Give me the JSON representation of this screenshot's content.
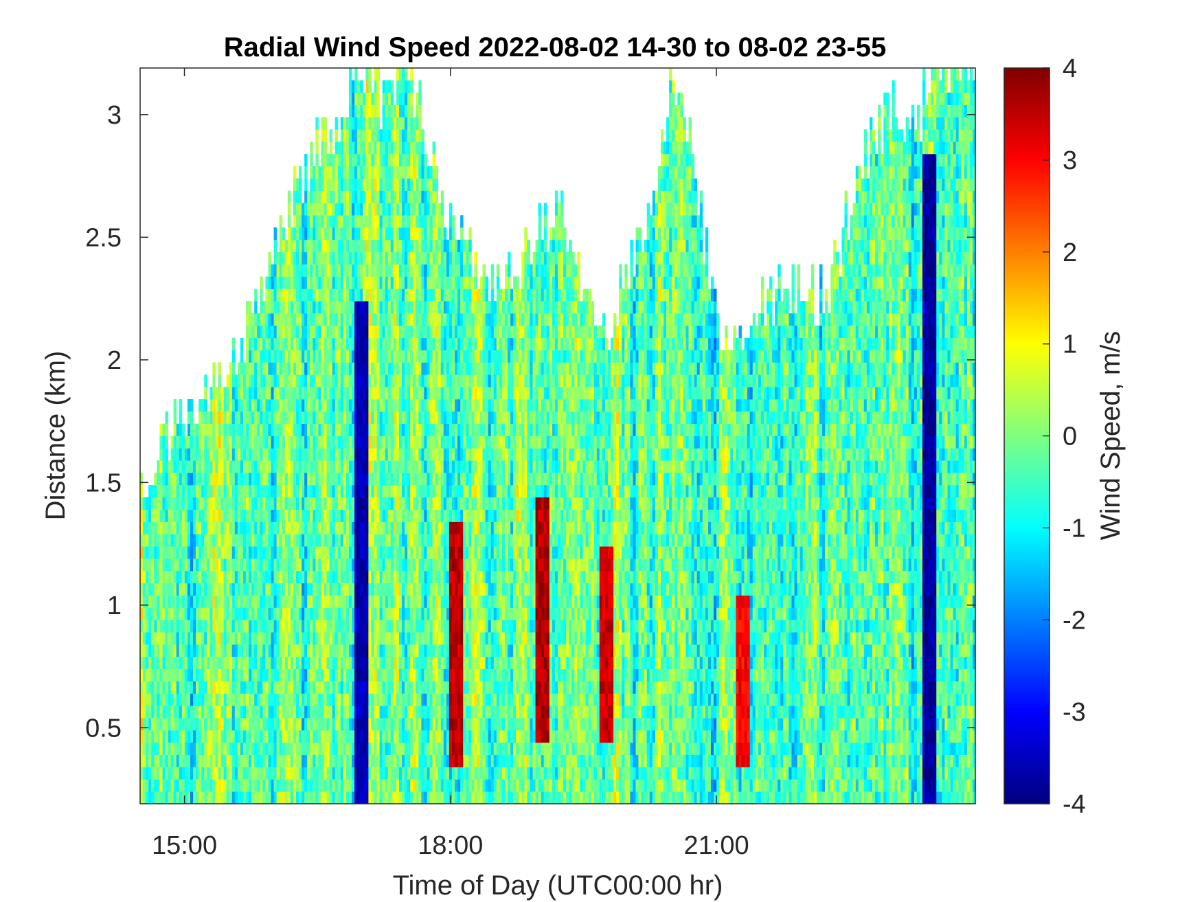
{
  "chart_data": {
    "type": "heatmap",
    "title": "Radial Wind Speed 2022-08-02 14-30 to 08-02 23-55",
    "xlabel": "Time of Day (UTC00:00 hr)",
    "ylabel": "Distance (km)",
    "colorbar_label": "Wind Speed, m/s",
    "x_range_hours": [
      14.5,
      23.92
    ],
    "x_ticks": [
      15,
      18,
      21
    ],
    "x_tick_labels": [
      "15:00",
      "18:00",
      "21:00"
    ],
    "ylim": [
      0.19,
      3.19
    ],
    "y_ticks": [
      0.5,
      1,
      1.5,
      2,
      2.5,
      3
    ],
    "y_tick_labels": [
      "0.5",
      "1",
      "1.5",
      "2",
      "2.5",
      "3"
    ],
    "clim": [
      -4,
      4
    ],
    "c_ticks": [
      -4,
      -3,
      -2,
      -1,
      0,
      1,
      2,
      3,
      4
    ],
    "c_tick_labels": [
      "-4",
      "-3",
      "-2",
      "-1",
      "0",
      "1",
      "2",
      "3",
      "4"
    ],
    "colormap": "jet",
    "data_top_km": {
      "time_hours": [
        14.5,
        14.75,
        15.0,
        15.25,
        15.5,
        15.75,
        16.0,
        16.25,
        16.5,
        16.75,
        17.0,
        17.25,
        17.5,
        17.75,
        18.0,
        18.25,
        18.5,
        18.75,
        19.0,
        19.25,
        19.5,
        19.75,
        20.0,
        20.25,
        20.5,
        20.75,
        21.0,
        21.25,
        21.5,
        21.75,
        22.0,
        22.25,
        22.5,
        22.75,
        23.0,
        23.25,
        23.5,
        23.75,
        23.92
      ],
      "max_distance_km": [
        1.45,
        1.65,
        1.75,
        1.85,
        1.95,
        2.15,
        2.4,
        2.65,
        2.85,
        2.95,
        3.19,
        3.0,
        3.19,
        2.9,
        2.5,
        2.4,
        2.3,
        2.35,
        2.5,
        2.6,
        2.2,
        2.1,
        2.3,
        2.55,
        3.19,
        2.8,
        2.1,
        2.1,
        2.2,
        2.25,
        2.3,
        2.2,
        2.6,
        2.9,
        3.0,
        2.95,
        3.19,
        3.19,
        3.19
      ]
    },
    "notable_features": [
      {
        "time_hours": 17.0,
        "distance_range_km": [
          0.19,
          2.2
        ],
        "value_ms": -3.6
      },
      {
        "time_hours": 18.05,
        "distance_range_km": [
          0.3,
          1.3
        ],
        "value_ms": 3.5
      },
      {
        "time_hours": 19.05,
        "distance_range_km": [
          0.4,
          1.4
        ],
        "value_ms": 3.6
      },
      {
        "time_hours": 19.75,
        "distance_range_km": [
          0.4,
          1.2
        ],
        "value_ms": 3.4
      },
      {
        "time_hours": 21.3,
        "distance_range_km": [
          0.3,
          1.0
        ],
        "value_ms": 3.0
      },
      {
        "time_hours": 23.4,
        "distance_range_km": [
          0.19,
          2.8
        ],
        "value_ms": -3.8
      }
    ]
  }
}
